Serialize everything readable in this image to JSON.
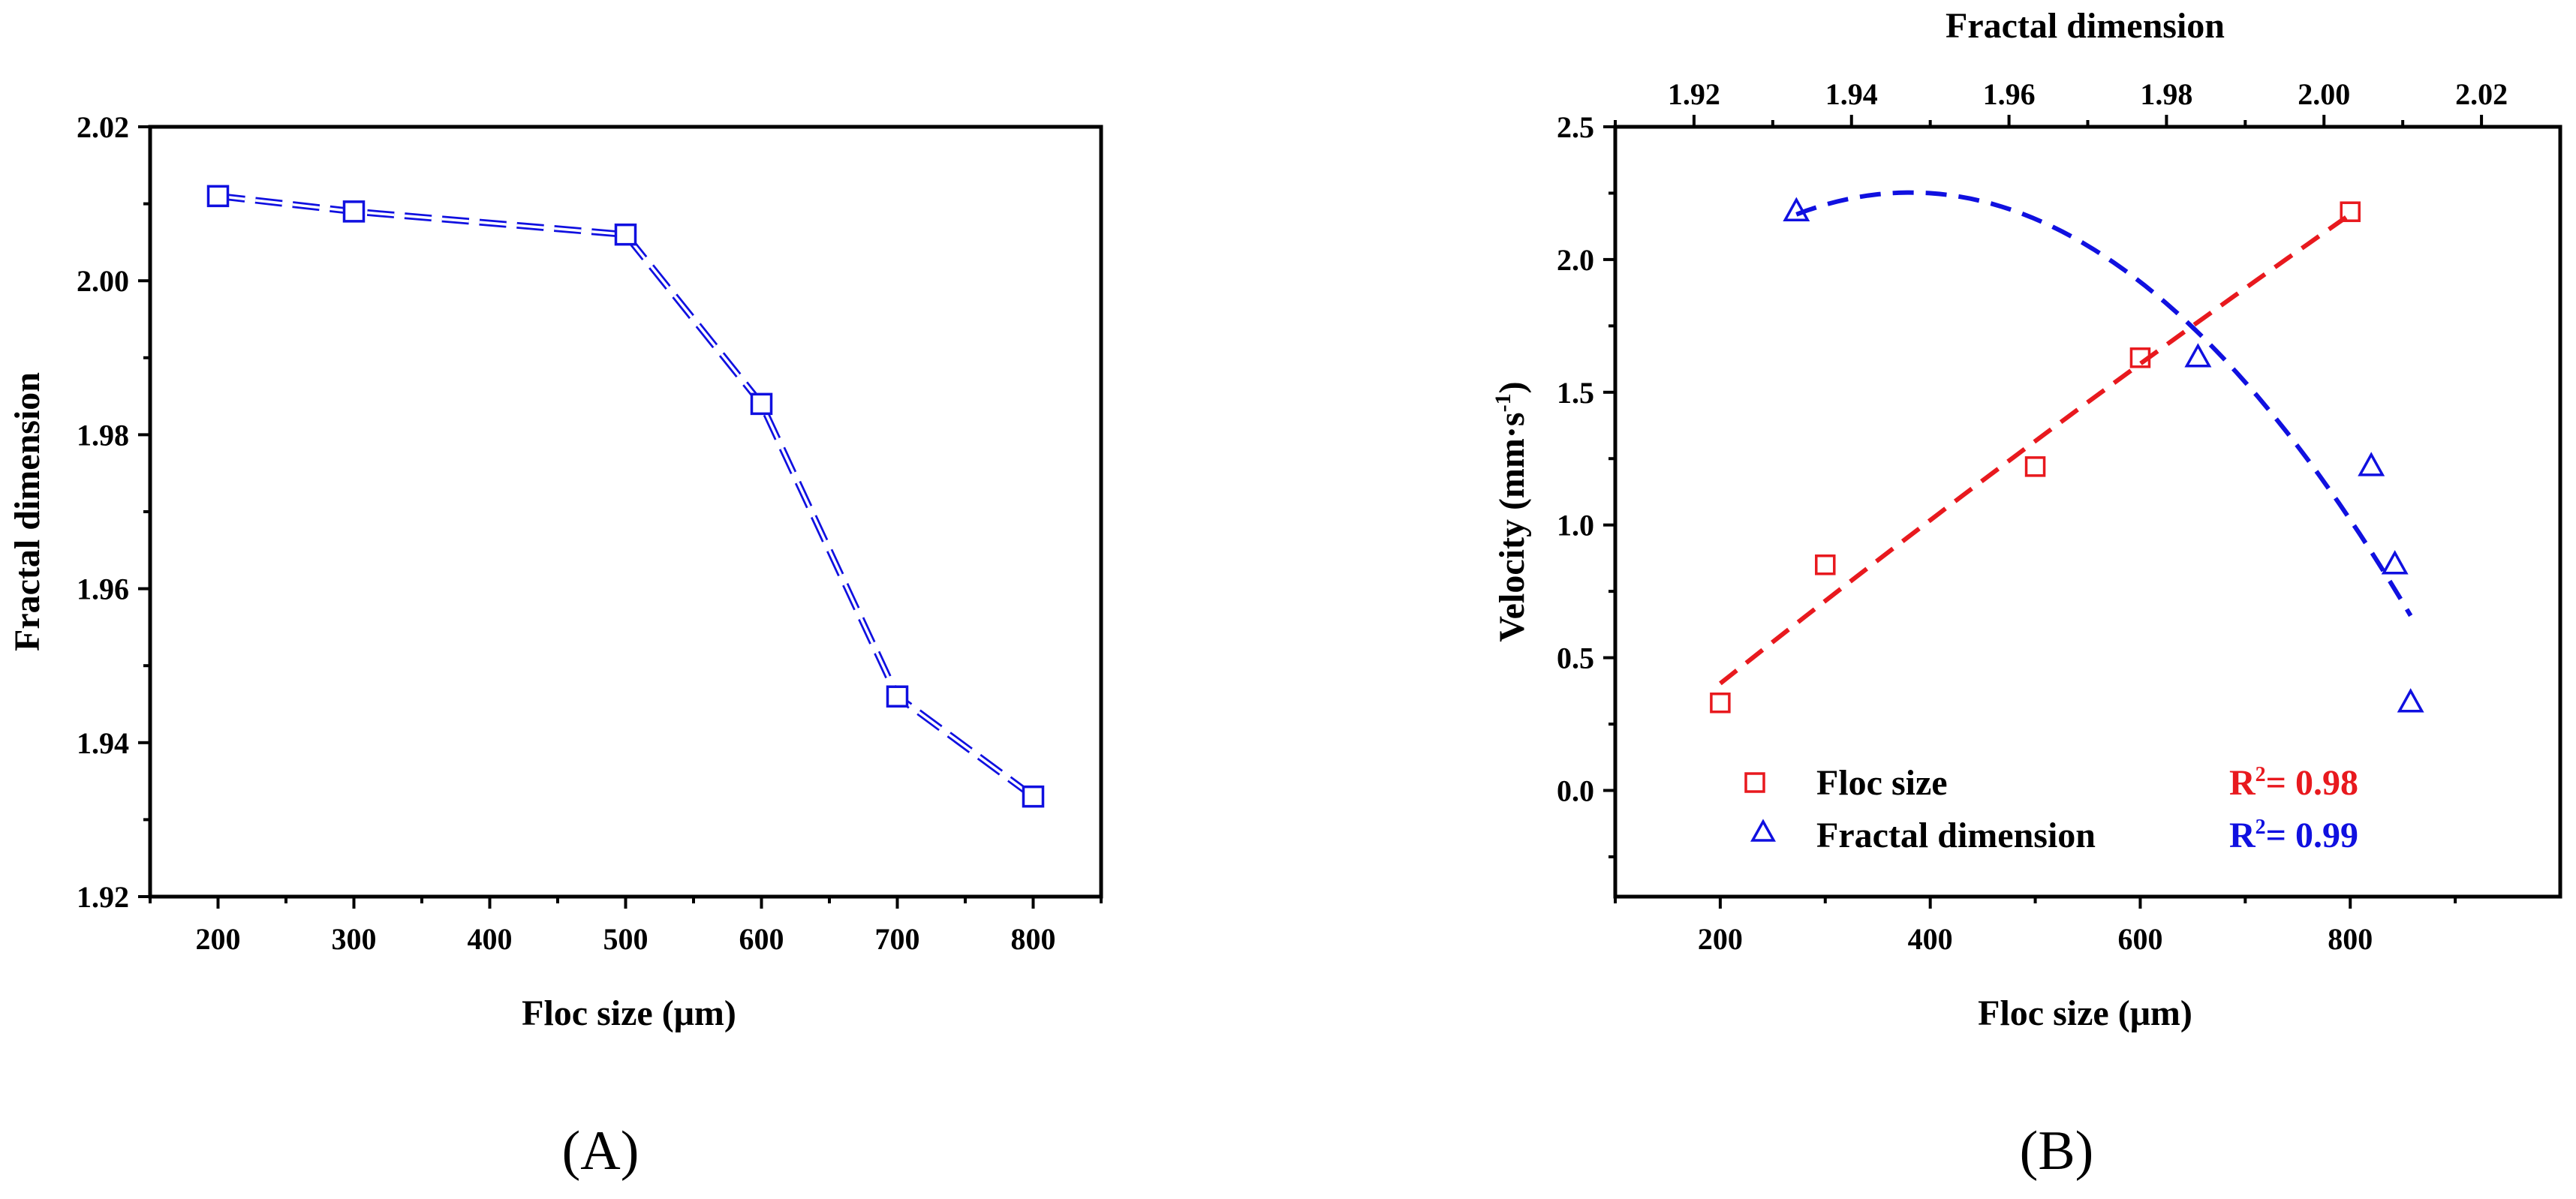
{
  "chart_data": [
    {
      "panel_label": "(A)",
      "type": "line",
      "xlabel": "Floc size (μm)",
      "ylabel": "Fractal dimension",
      "xlim": [
        150,
        850
      ],
      "ylim": [
        1.92,
        2.02
      ],
      "xticks": [
        "200",
        "300",
        "400",
        "500",
        "600",
        "700",
        "800"
      ],
      "yticks": [
        "1.92",
        "1.94",
        "1.96",
        "1.98",
        "2.00",
        "2.02"
      ],
      "series": [
        {
          "name": "Fractal dimension",
          "marker": "square",
          "color": "#1010e0",
          "x": [
            200,
            300,
            500,
            600,
            700,
            800
          ],
          "y": [
            2.011,
            2.009,
            2.006,
            1.984,
            1.946,
            1.933
          ]
        }
      ]
    },
    {
      "panel_label": "(B)",
      "type": "scatter",
      "xlabel": "Floc size (μm)",
      "ylabel": "Velocity (mm·s",
      "ylabel_sup": "-1",
      "ylabel_close": ")",
      "top_xlabel": "Fractal dimension",
      "xlim": [
        100,
        1000
      ],
      "ylim": [
        -0.4,
        2.5
      ],
      "top_xlim": [
        1.91,
        2.03
      ],
      "xticks": [
        "200",
        "400",
        "600",
        "800"
      ],
      "yticks": [
        "0.0",
        "0.5",
        "1.0",
        "1.5",
        "2.0",
        "2.5"
      ],
      "top_xticks": [
        "1.92",
        "1.94",
        "1.96",
        "1.98",
        "2.00",
        "2.02"
      ],
      "series": [
        {
          "name": "Floc size",
          "marker": "square",
          "color": "#e8191e",
          "axis": "bottom",
          "x": [
            200,
            300,
            500,
            600,
            800
          ],
          "y": [
            0.33,
            0.85,
            1.22,
            1.63,
            2.18
          ],
          "fit_x": [
            200,
            800
          ],
          "r2_label": "R",
          "r2_sup": "2",
          "r2_value": "= 0.98"
        },
        {
          "name": "Fractal dimension",
          "marker": "triangle",
          "color": "#1010e0",
          "axis": "top",
          "x": [
            1.933,
            1.984,
            2.006,
            2.009,
            2.011
          ],
          "y": [
            2.18,
            1.63,
            1.22,
            0.85,
            0.33
          ],
          "fit_x": [
            1.933,
            2.011
          ],
          "r2_label": "R",
          "r2_sup": "2",
          "r2_value": "= 0.99"
        }
      ]
    }
  ]
}
